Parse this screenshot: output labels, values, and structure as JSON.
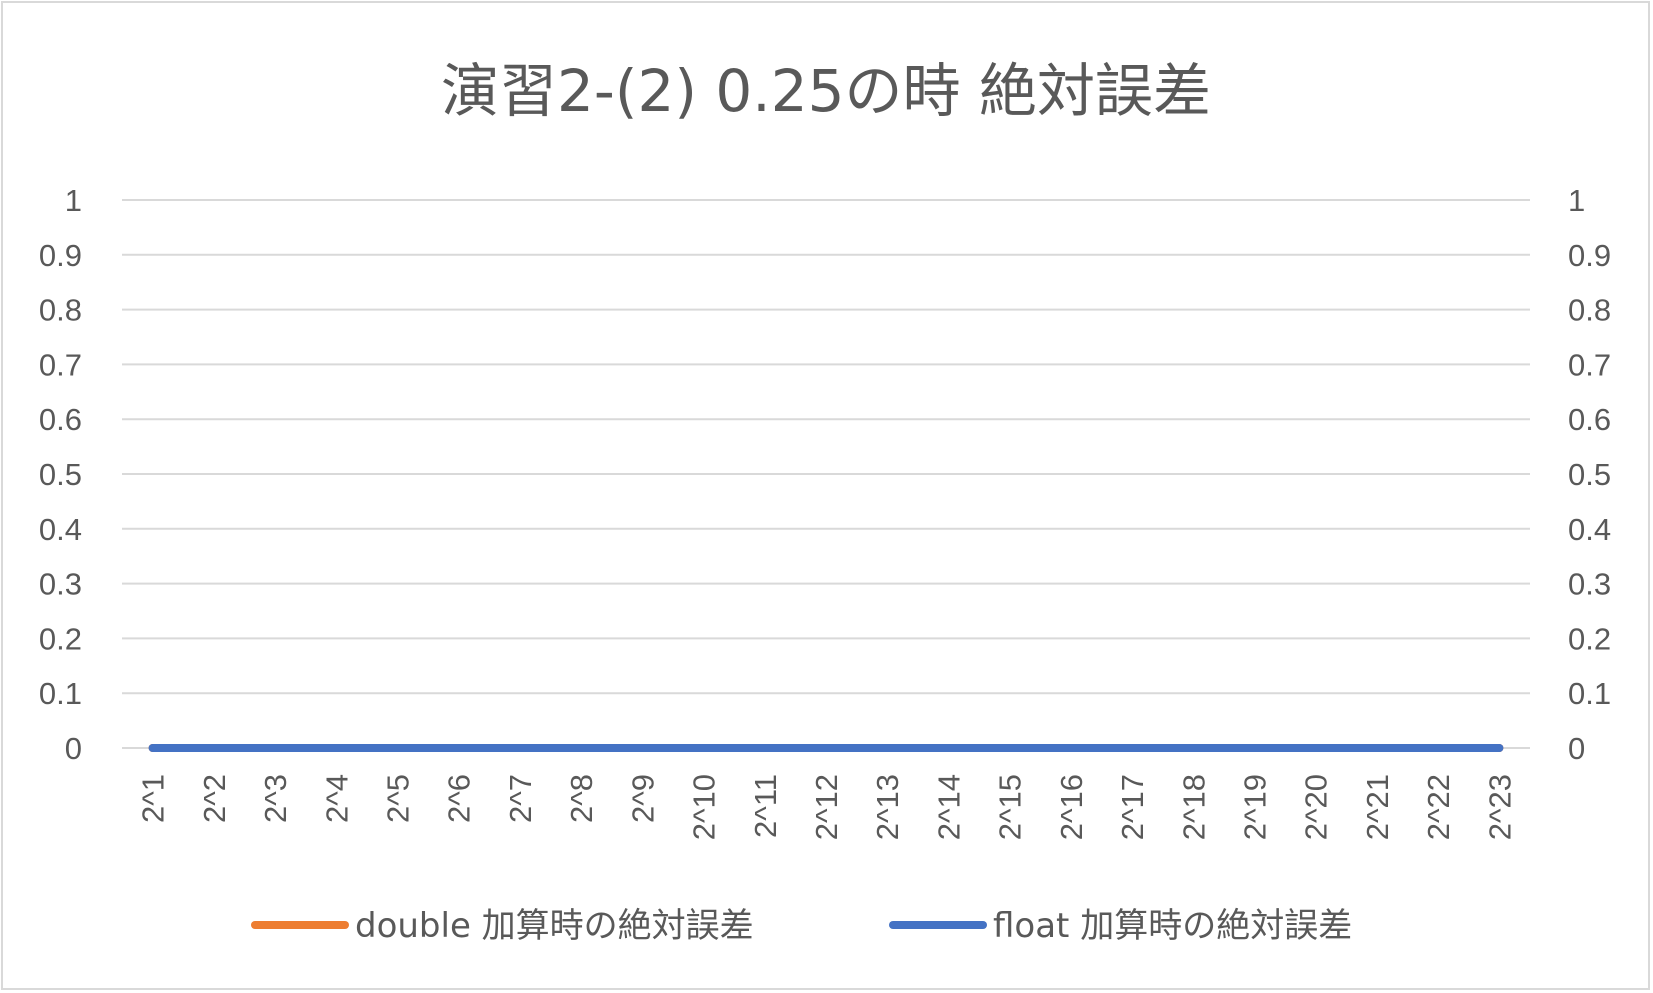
{
  "chart_data": {
    "type": "line",
    "title": "演習2-(2) 0.25の時 絶対誤差",
    "xlabel": "",
    "ylabel": "",
    "categories": [
      "2^1",
      "2^2",
      "2^3",
      "2^4",
      "2^5",
      "2^6",
      "2^7",
      "2^8",
      "2^9",
      "2^10",
      "2^11",
      "2^12",
      "2^13",
      "2^14",
      "2^15",
      "2^16",
      "2^17",
      "2^18",
      "2^19",
      "2^20",
      "2^21",
      "2^22",
      "2^23"
    ],
    "series": [
      {
        "name": "double 加算時の絶対誤差",
        "color": "#ed7d31",
        "axis": "left",
        "values": [
          0,
          0,
          0,
          0,
          0,
          0,
          0,
          0,
          0,
          0,
          0,
          0,
          0,
          0,
          0,
          0,
          0,
          0,
          0,
          0,
          0,
          0,
          0
        ]
      },
      {
        "name": "float 加算時の絶対誤差",
        "color": "#4472c4",
        "axis": "right",
        "values": [
          0,
          0,
          0,
          0,
          0,
          0,
          0,
          0,
          0,
          0,
          0,
          0,
          0,
          0,
          0,
          0,
          0,
          0,
          0,
          0,
          0,
          0,
          0
        ]
      }
    ],
    "ylim": [
      0,
      1
    ],
    "y_ticks": [
      "0",
      "0.1",
      "0.2",
      "0.3",
      "0.4",
      "0.5",
      "0.6",
      "0.7",
      "0.8",
      "0.9",
      "1"
    ],
    "y2_ticks": [
      "0",
      "0.1",
      "0.2",
      "0.3",
      "0.4",
      "0.5",
      "0.6",
      "0.7",
      "0.8",
      "0.9",
      "1"
    ],
    "grid": true,
    "legend_position": "bottom",
    "gridline_color": "#d9d9d9"
  }
}
